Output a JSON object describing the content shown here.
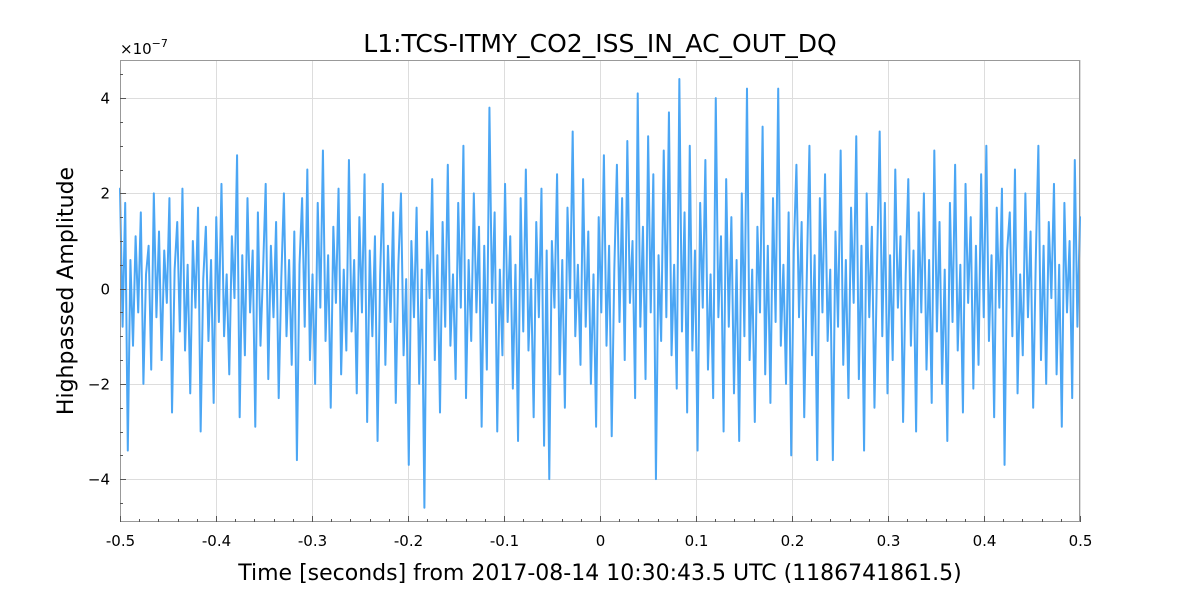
{
  "chart_data": {
    "type": "line",
    "title": "L1:TCS-ITMY_CO2_ISS_IN_AC_OUT_DQ",
    "xlabel": "Time [seconds] from 2017-08-14 10:30:43.5 UTC (1186741861.5)",
    "ylabel": "Highpassed Amplitude",
    "y_scale_label_prefix": "×10",
    "y_scale_label_exp": "−7",
    "xlim": [
      -0.5,
      0.5
    ],
    "ylim": [
      -4.9,
      4.8
    ],
    "x_ticks": [
      {
        "value": -0.5,
        "label": "-0.5"
      },
      {
        "value": -0.4,
        "label": "-0.4"
      },
      {
        "value": -0.3,
        "label": "-0.3"
      },
      {
        "value": -0.2,
        "label": "-0.2"
      },
      {
        "value": -0.1,
        "label": "-0.1"
      },
      {
        "value": 0,
        "label": "0"
      },
      {
        "value": 0.1,
        "label": "0.1"
      },
      {
        "value": 0.2,
        "label": "0.2"
      },
      {
        "value": 0.3,
        "label": "0.3"
      },
      {
        "value": 0.4,
        "label": "0.4"
      },
      {
        "value": 0.5,
        "label": "0.5"
      }
    ],
    "y_ticks": [
      {
        "value": -4,
        "label": "−4"
      },
      {
        "value": -2,
        "label": "−2"
      },
      {
        "value": 0,
        "label": "0"
      },
      {
        "value": 2,
        "label": "2"
      },
      {
        "value": 4,
        "label": "4"
      }
    ],
    "grid": true,
    "series": [
      {
        "name": "L1:TCS-ITMY_CO2_ISS_IN_AC_OUT_DQ",
        "color": "#4ba6f4",
        "x_start": -0.5,
        "x_end": 0.5,
        "values": [
          2.1,
          -0.8,
          1.8,
          -3.4,
          0.6,
          -1.2,
          1.1,
          -0.5,
          1.6,
          -2.0,
          0.3,
          0.9,
          -1.7,
          2.0,
          -0.6,
          1.2,
          -1.5,
          0.8,
          -0.3,
          1.9,
          -2.6,
          0.4,
          1.4,
          -0.9,
          2.1,
          -1.3,
          0.5,
          -2.2,
          1.0,
          -0.4,
          1.7,
          -3.0,
          0.2,
          1.3,
          -1.1,
          0.6,
          -2.4,
          1.5,
          -0.7,
          2.2,
          -1.0,
          0.3,
          -1.8,
          1.1,
          -0.2,
          2.8,
          -2.7,
          0.7,
          -1.4,
          1.9,
          -0.5,
          0.8,
          -2.9,
          1.6,
          -1.2,
          0.4,
          2.2,
          -1.9,
          0.9,
          -0.6,
          1.4,
          -2.3,
          0.2,
          2.0,
          -1.0,
          0.6,
          -1.6,
          1.2,
          -3.6,
          0.5,
          1.9,
          -0.8,
          2.5,
          -1.5,
          0.3,
          -2.0,
          1.8,
          -0.4,
          2.9,
          -1.1,
          0.7,
          -2.5,
          1.3,
          -0.3,
          2.1,
          -1.8,
          0.4,
          -1.3,
          2.7,
          -0.9,
          0.6,
          -2.2,
          1.5,
          -0.5,
          2.4,
          -2.8,
          0.8,
          -1.0,
          1.1,
          -3.2,
          0.3,
          2.2,
          -1.6,
          0.9,
          -0.7,
          1.6,
          -2.4,
          0.5,
          2.0,
          -1.4,
          0.2,
          -3.7,
          1.0,
          -0.6,
          1.7,
          -2.0,
          0.4,
          -4.6,
          1.2,
          -0.2,
          2.3,
          -1.5,
          0.7,
          -2.6,
          1.4,
          -0.8,
          2.6,
          -1.2,
          0.3,
          -1.9,
          1.8,
          -0.4,
          3.0,
          -2.3,
          0.6,
          -1.1,
          2.0,
          -0.5,
          1.3,
          -2.9,
          0.9,
          -1.7,
          3.8,
          -0.3,
          1.6,
          -3.0,
          0.4,
          -1.4,
          2.2,
          -0.7,
          1.1,
          -2.1,
          0.5,
          -3.2,
          1.9,
          -0.9,
          2.5,
          -1.3,
          0.2,
          -2.7,
          1.4,
          -0.6,
          2.1,
          -3.3,
          0.8,
          -4.0,
          1.0,
          -0.4,
          2.4,
          -1.8,
          0.6,
          -2.5,
          1.7,
          -0.2,
          3.3,
          -1.0,
          0.5,
          -1.6,
          2.3,
          -0.8,
          1.2,
          -2.0,
          0.3,
          -2.9,
          1.5,
          -0.5,
          2.8,
          -1.2,
          0.9,
          -3.1,
          0.4,
          2.6,
          -0.7,
          1.9,
          -1.5,
          3.1,
          -0.3,
          1.0,
          -2.3,
          4.1,
          -0.8,
          1.3,
          -1.9,
          3.2,
          -0.5,
          2.4,
          -4.0,
          0.7,
          -1.1,
          2.9,
          -0.6,
          3.7,
          -1.4,
          0.5,
          -2.1,
          4.4,
          -0.9,
          1.6,
          -2.6,
          3.0,
          -1.3,
          0.8,
          -3.4,
          1.8,
          -0.4,
          2.7,
          -1.7,
          0.3,
          -2.3,
          4.0,
          -0.6,
          1.1,
          -3.0,
          2.3,
          -0.8,
          1.5,
          -2.2,
          0.6,
          -3.2,
          2.0,
          -1.0,
          4.2,
          -1.5,
          0.4,
          -2.8,
          1.3,
          -0.5,
          3.4,
          -1.8,
          0.9,
          -2.4,
          1.9,
          -0.7,
          4.2,
          -1.2,
          0.5,
          -2.0,
          1.6,
          -3.5,
          0.8,
          2.6,
          -0.6,
          1.4,
          -2.7,
          0.3,
          3.0,
          -1.4,
          0.7,
          -3.6,
          1.9,
          -0.5,
          2.4,
          -1.1,
          0.4,
          -3.6,
          1.2,
          -0.8,
          2.9,
          -1.6,
          0.6,
          -2.3,
          1.7,
          -0.3,
          3.2,
          -1.9,
          0.9,
          -3.4,
          2.0,
          -0.6,
          1.3,
          -2.5,
          0.5,
          3.3,
          -1.0,
          1.8,
          -2.2,
          0.7,
          -1.5,
          2.5,
          -0.4,
          1.1,
          -2.8,
          0.3,
          2.3,
          -1.2,
          0.8,
          -3.0,
          1.6,
          -0.5,
          2.0,
          -1.7,
          0.6,
          -2.4,
          2.9,
          -0.9,
          1.4,
          -2.0,
          0.4,
          -3.2,
          1.8,
          -0.7,
          2.6,
          -1.3,
          0.5,
          -2.6,
          2.2,
          -0.3,
          1.5,
          -2.1,
          0.9,
          -1.6,
          2.4,
          -0.6,
          3.0,
          -1.1,
          0.7,
          -2.7,
          1.7,
          -0.4,
          2.1,
          -3.7,
          0.8,
          1.6,
          -1.0,
          2.5,
          -2.2,
          0.3,
          -1.4,
          2.0,
          -0.6,
          1.2,
          -2.5,
          0.6,
          3.0,
          -1.5,
          0.9,
          -2.0,
          1.4,
          -0.2,
          2.2,
          -1.8,
          0.5,
          -2.9,
          1.8,
          -0.5,
          1.0,
          -2.3,
          2.7,
          -0.8,
          1.5
        ]
      }
    ]
  }
}
